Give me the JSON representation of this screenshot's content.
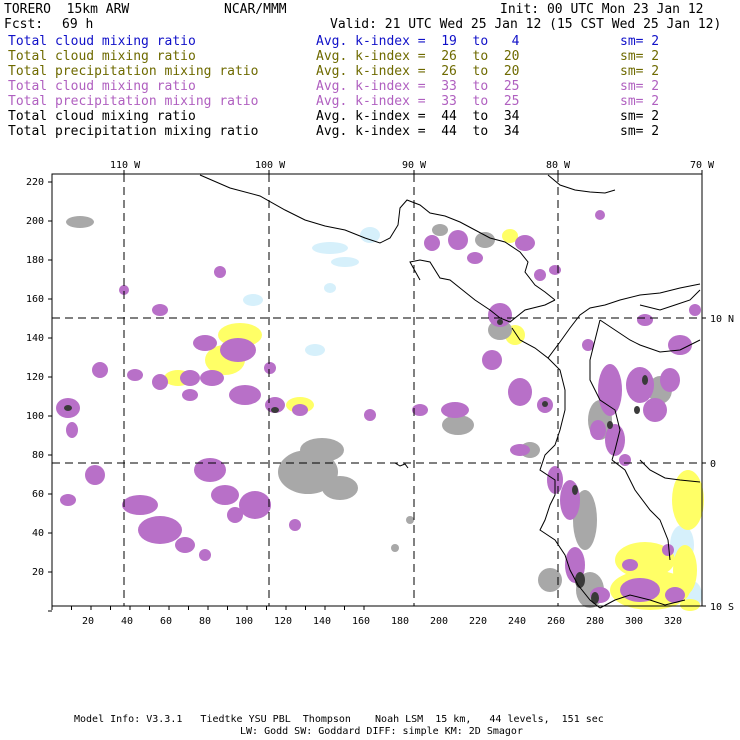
{
  "header": {
    "model": "TORERO  15km ARW",
    "org": "NCAR/MMM",
    "init": "Init: 00 UTC Mon 23 Jan 12",
    "fcst_label": "Fcst:",
    "fcst_value": "69 h",
    "valid": "Valid: 21 UTC Wed 25 Jan 12 (15 CST Wed 25 Jan 12)"
  },
  "fields": [
    {
      "name": "Total cloud mixing ratio",
      "kindex": "Avg. k-index =  19  to   4",
      "sm": "sm= 2",
      "color": "#1010c8"
    },
    {
      "name": "Total cloud mixing ratio",
      "kindex": "Avg. k-index =  26  to  20",
      "sm": "sm= 2",
      "color": "#6e6a00"
    },
    {
      "name": "Total precipitation mixing ratio",
      "kindex": "Avg. k-index =  26  to  20",
      "sm": "sm= 2",
      "color": "#6e6a00"
    },
    {
      "name": "Total cloud mixing ratio",
      "kindex": "Avg. k-index =  33  to  25",
      "sm": "sm= 2",
      "color": "#b060c0"
    },
    {
      "name": "Total precipitation mixing ratio",
      "kindex": "Avg. k-index =  33  to  25",
      "sm": "sm= 2",
      "color": "#b060c0"
    },
    {
      "name": "Total cloud mixing ratio",
      "kindex": "Avg. k-index =  44  to  34",
      "sm": "sm= 2",
      "color": "#000000"
    },
    {
      "name": "Total precipitation mixing ratio",
      "kindex": "Avg. k-index =  44  to  34",
      "sm": "sm= 2",
      "color": "#000000"
    }
  ],
  "map": {
    "lon_labels": [
      "110 W",
      "100 W",
      "90 W",
      "80 W",
      "70 W"
    ],
    "lat_labels_right": [
      "10 N",
      "0",
      "10 S"
    ],
    "y_ticks": [
      "220",
      "200",
      "180",
      "160",
      "140",
      "120",
      "100",
      "80",
      "60",
      "40",
      "20"
    ],
    "x_ticks": [
      "20",
      "40",
      "60",
      "80",
      "100",
      "120",
      "140",
      "160",
      "180",
      "200",
      "220",
      "240",
      "260",
      "280",
      "300",
      "320"
    ],
    "colors": {
      "light_blue": "#d6f0fb",
      "yellow": "#ffff66",
      "purple": "#b870c8",
      "gray": "#a8a8a8",
      "dark": "#3a3a3a"
    }
  },
  "footer": {
    "line1": "Model Info: V3.3.1   Tiedtke YSU PBL  Thompson    Noah LSM  15 km,   44 levels,  151 sec",
    "line2": "LW: Godd SW: Goddard DIFF: simple KM: 2D Smagor"
  }
}
